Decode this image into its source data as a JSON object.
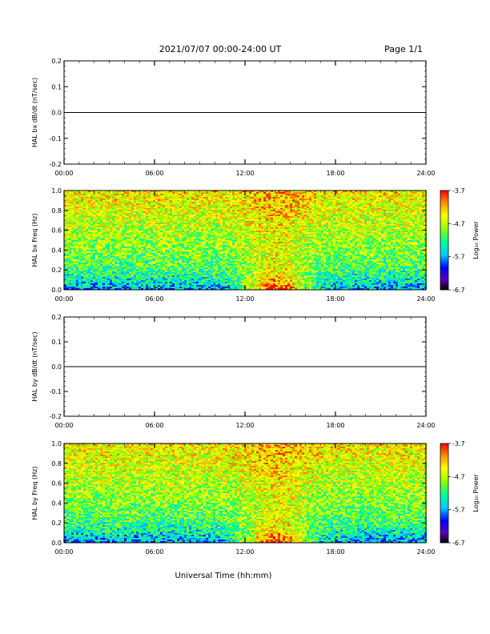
{
  "header": {
    "date_range": "2021/07/07  00:00-24:00 UT",
    "page": "Page 1/1"
  },
  "x_axis": {
    "title": "Universal Time (hh:mm)",
    "ticks": [
      "00:00",
      "06:00",
      "12:00",
      "18:00",
      "24:00"
    ],
    "range_hours": [
      0,
      24
    ]
  },
  "colorbar": {
    "label": "Log₁₀ Power",
    "ticks": [
      "-3.7",
      "-4.7",
      "-5.7",
      "-6.7"
    ],
    "tick_values": [
      -3.7,
      -4.7,
      -5.7,
      -6.7
    ],
    "range": [
      -6.7,
      -3.7
    ],
    "colors": [
      "#000000",
      "#5a00b4",
      "#0000ff",
      "#00c8ff",
      "#00ff96",
      "#96ff00",
      "#ffff00",
      "#ff9600",
      "#ff0000"
    ]
  },
  "chart_data": [
    {
      "type": "line",
      "ylabel": "HAL bx dB/dt (nT/sec)",
      "ylim": [
        -0.2,
        0.2
      ],
      "yticks": [
        "0.2",
        "0.1",
        "0.0",
        "-0.1",
        "-0.2"
      ],
      "ytick_values": [
        0.2,
        0.1,
        0.0,
        -0.1,
        -0.2
      ],
      "x": [
        0,
        24
      ],
      "values": [
        0.0,
        0.0
      ]
    },
    {
      "type": "heatmap",
      "ylabel": "HAL bx Freq (Hz)",
      "ylim": [
        0.0,
        1.0
      ],
      "yticks": [
        "1.0",
        "0.8",
        "0.6",
        "0.4",
        "0.2",
        "0.0"
      ],
      "ytick_values": [
        1.0,
        0.8,
        0.6,
        0.4,
        0.2,
        0.0
      ],
      "x_range_hours": [
        0,
        24
      ],
      "zlim": [
        -6.7,
        -3.7
      ]
    },
    {
      "type": "line",
      "ylabel": "HAL by dB/dt (nT/sec)",
      "ylim": [
        -0.2,
        0.2
      ],
      "yticks": [
        "0.2",
        "0.1",
        "0.0",
        "-0.1",
        "-0.2"
      ],
      "ytick_values": [
        0.2,
        0.1,
        0.0,
        -0.1,
        -0.2
      ],
      "x": [
        0,
        24
      ],
      "values": [
        0.0,
        0.0
      ]
    },
    {
      "type": "heatmap",
      "ylabel": "HAL by Freq (Hz)",
      "ylim": [
        0.0,
        1.0
      ],
      "yticks": [
        "1.0",
        "0.8",
        "0.6",
        "0.4",
        "0.2",
        "0.0"
      ],
      "ytick_values": [
        1.0,
        0.8,
        0.6,
        0.4,
        0.2,
        0.0
      ],
      "x_range_hours": [
        0,
        24
      ],
      "zlim": [
        -6.7,
        -3.7
      ]
    }
  ]
}
